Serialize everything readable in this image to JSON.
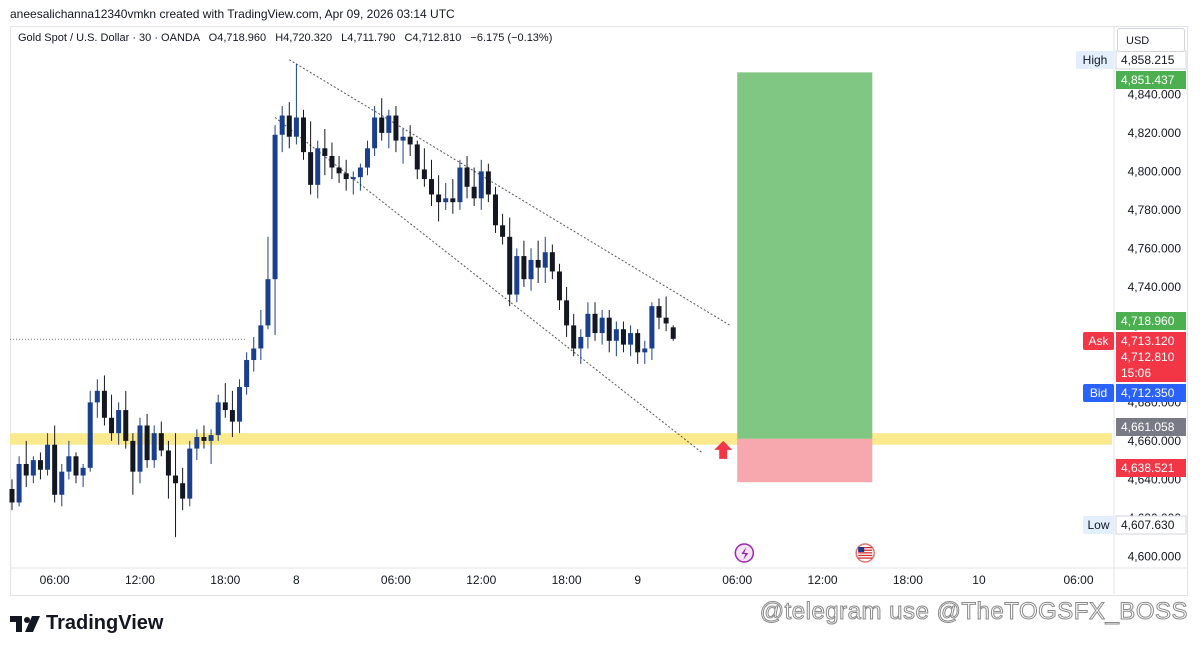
{
  "created_line": "aneesalichanna12340vmkn created with TradingView.com, Apr 09, 2026 03:14 UTC",
  "legend": {
    "symbol": "Gold Spot / U.S. Dollar · 30 · OANDA",
    "open": "O4,718.960",
    "high": "H4,720.320",
    "low": "L4,711.790",
    "close": "C4,712.810",
    "change": "−6.175 (−0.13%)"
  },
  "currency": "USD",
  "brand": "TradingView",
  "watermark": "@telegram use @TheTOGSFX_BOSS",
  "colors": {
    "up_candle": "#1b3f8f",
    "down_candle": "#131722",
    "target_zone": "#81c784",
    "stop_zone": "#f7a7ae",
    "support_band": "#fbe98e",
    "high_tag": "#ffffff",
    "target_tag": "#4caf50",
    "ask": "#f23645",
    "bid": "#2962ff",
    "arrow": "#f23645"
  },
  "icons": [
    "lightning-icon",
    "us-flag-icon",
    "up-arrow-icon",
    "tradingview-logo-icon"
  ],
  "chart_data": {
    "type": "candlestick",
    "title": "",
    "xlabel": "",
    "ylabel": "",
    "ylim": [
      4595,
      4875
    ],
    "y_ticks": [
      4600,
      4620,
      4640,
      4660,
      4680,
      4700,
      4720,
      4740,
      4760,
      4780,
      4800,
      4820,
      4840
    ],
    "y_tick_labels": [
      "4,600.000",
      "4,620.000",
      "4,640.000",
      "4,660.000",
      "4,680.000",
      "4,700.000",
      "4,720.000",
      "4,740.000",
      "4,760.000",
      "4,780.000",
      "4,800.000",
      "4,820.000",
      "4,840.000"
    ],
    "x_ticks": [
      {
        "label": "06:00",
        "bar": 6
      },
      {
        "label": "12:00",
        "bar": 18
      },
      {
        "label": "18:00",
        "bar": 30
      },
      {
        "label": "8",
        "bar": 40
      },
      {
        "label": "06:00",
        "bar": 54
      },
      {
        "label": "12:00",
        "bar": 66
      },
      {
        "label": "18:00",
        "bar": 78
      },
      {
        "label": "9",
        "bar": 88
      },
      {
        "label": "06:00",
        "bar": 102
      },
      {
        "label": "12:00",
        "bar": 114
      },
      {
        "label": "18:00",
        "bar": 126
      },
      {
        "label": "10",
        "bar": 136
      },
      {
        "label": "06:00",
        "bar": 150
      }
    ],
    "candles": [
      [
        4635,
        4640,
        4624,
        4628
      ],
      [
        4628,
        4652,
        4626,
        4648
      ],
      [
        4648,
        4660,
        4636,
        4642
      ],
      [
        4642,
        4652,
        4638,
        4650
      ],
      [
        4650,
        4654,
        4640,
        4645
      ],
      [
        4645,
        4664,
        4642,
        4658
      ],
      [
        4658,
        4668,
        4628,
        4632
      ],
      [
        4632,
        4648,
        4626,
        4644
      ],
      [
        4644,
        4660,
        4640,
        4652
      ],
      [
        4652,
        4654,
        4638,
        4642
      ],
      [
        4642,
        4648,
        4636,
        4646
      ],
      [
        4646,
        4686,
        4644,
        4680
      ],
      [
        4680,
        4692,
        4672,
        4686
      ],
      [
        4686,
        4694,
        4668,
        4672
      ],
      [
        4672,
        4684,
        4660,
        4664
      ],
      [
        4664,
        4680,
        4658,
        4676
      ],
      [
        4676,
        4686,
        4656,
        4660
      ],
      [
        4660,
        4664,
        4632,
        4644
      ],
      [
        4644,
        4672,
        4638,
        4668
      ],
      [
        4668,
        4674,
        4646,
        4650
      ],
      [
        4650,
        4668,
        4646,
        4664
      ],
      [
        4664,
        4670,
        4652,
        4655
      ],
      [
        4655,
        4660,
        4630,
        4642
      ],
      [
        4642,
        4664,
        4610,
        4638
      ],
      [
        4638,
        4646,
        4624,
        4630
      ],
      [
        4630,
        4660,
        4626,
        4656
      ],
      [
        4656,
        4666,
        4650,
        4662
      ],
      [
        4662,
        4668,
        4656,
        4660
      ],
      [
        4660,
        4666,
        4648,
        4663
      ],
      [
        4663,
        4684,
        4660,
        4680
      ],
      [
        4680,
        4690,
        4672,
        4676
      ],
      [
        4676,
        4686,
        4662,
        4670
      ],
      [
        4670,
        4692,
        4664,
        4688
      ],
      [
        4688,
        4706,
        4684,
        4702
      ],
      [
        4702,
        4714,
        4696,
        4708
      ],
      [
        4708,
        4728,
        4702,
        4720
      ],
      [
        4720,
        4766,
        4718,
        4744
      ],
      [
        4744,
        4824,
        4715,
        4819
      ],
      [
        4819,
        4834,
        4810,
        4829
      ],
      [
        4829,
        4836,
        4812,
        4818
      ],
      [
        4818,
        4856,
        4814,
        4828
      ],
      [
        4828,
        4832,
        4806,
        4810
      ],
      [
        4810,
        4826,
        4788,
        4793
      ],
      [
        4793,
        4816,
        4786,
        4812
      ],
      [
        4812,
        4822,
        4798,
        4808
      ],
      [
        4808,
        4815,
        4796,
        4802
      ],
      [
        4802,
        4808,
        4794,
        4799
      ],
      [
        4799,
        4806,
        4790,
        4796
      ],
      [
        4796,
        4800,
        4788,
        4797
      ],
      [
        4797,
        4804,
        4790,
        4802
      ],
      [
        4802,
        4816,
        4798,
        4812
      ],
      [
        4812,
        4834,
        4808,
        4828
      ],
      [
        4828,
        4838,
        4816,
        4820
      ],
      [
        4820,
        4832,
        4812,
        4829
      ],
      [
        4829,
        4834,
        4810,
        4816
      ],
      [
        4816,
        4822,
        4804,
        4818
      ],
      [
        4818,
        4824,
        4808,
        4814
      ],
      [
        4814,
        4816,
        4796,
        4801
      ],
      [
        4801,
        4812,
        4792,
        4796
      ],
      [
        4796,
        4806,
        4782,
        4788
      ],
      [
        4788,
        4798,
        4774,
        4784
      ],
      [
        4784,
        4794,
        4780,
        4786
      ],
      [
        4786,
        4796,
        4778,
        4784
      ],
      [
        4784,
        4806,
        4780,
        4802
      ],
      [
        4802,
        4808,
        4786,
        4792
      ],
      [
        4792,
        4802,
        4782,
        4786
      ],
      [
        4786,
        4806,
        4780,
        4800
      ],
      [
        4800,
        4804,
        4784,
        4788
      ],
      [
        4788,
        4792,
        4768,
        4772
      ],
      [
        4772,
        4778,
        4762,
        4766
      ],
      [
        4766,
        4776,
        4730,
        4736
      ],
      [
        4736,
        4760,
        4732,
        4756
      ],
      [
        4756,
        4764,
        4740,
        4744
      ],
      [
        4744,
        4760,
        4738,
        4754
      ],
      [
        4754,
        4764,
        4742,
        4750
      ],
      [
        4750,
        4766,
        4742,
        4758
      ],
      [
        4758,
        4762,
        4744,
        4748
      ],
      [
        4748,
        4752,
        4728,
        4733
      ],
      [
        4733,
        4740,
        4714,
        4720
      ],
      [
        4720,
        4726,
        4704,
        4708
      ],
      [
        4708,
        4718,
        4700,
        4714
      ],
      [
        4714,
        4732,
        4708,
        4726
      ],
      [
        4726,
        4732,
        4712,
        4716
      ],
      [
        4716,
        4728,
        4710,
        4724
      ],
      [
        4724,
        4728,
        4706,
        4712
      ],
      [
        4712,
        4722,
        4704,
        4718
      ],
      [
        4718,
        4722,
        4706,
        4710
      ],
      [
        4710,
        4720,
        4704,
        4716
      ],
      [
        4716,
        4718,
        4700,
        4706
      ],
      [
        4706,
        4712,
        4700,
        4708
      ],
      [
        4708,
        4732,
        4702,
        4730
      ],
      [
        4730,
        4734,
        4718,
        4724
      ],
      [
        4724,
        4735,
        4717,
        4721
      ],
      [
        4719,
        4720,
        4712,
        4713
      ]
    ],
    "price_lines": [
      {
        "label": "",
        "value": 4712.81,
        "style": "dotted"
      }
    ],
    "support_zone": {
      "from": 4658,
      "to": 4664
    },
    "trendlines": [
      {
        "from_bar": 39,
        "from_value": 4858,
        "to_bar": 101,
        "to_value": 4720
      },
      {
        "from_bar": 37,
        "from_value": 4828,
        "to_bar": 97,
        "to_value": 4654
      }
    ],
    "position": {
      "type": "long",
      "entry": 4661.058,
      "target": 4851.437,
      "stop": 4638.521,
      "start_bar": 102,
      "end_bar": 121
    },
    "price_tags": [
      {
        "side_label": "High",
        "value": "4,858.215",
        "price": 4858.215,
        "kind": "high"
      },
      {
        "side_label": "",
        "value": "4,851.437",
        "price": 4851.437,
        "kind": "target"
      },
      {
        "side_label": "",
        "value": "4,718.960",
        "price": 4718.96,
        "kind": "target"
      },
      {
        "side_label": "Ask",
        "value": "4,713.120",
        "price": 4713.12,
        "kind": "ask"
      },
      {
        "side_label": "",
        "value": "4,712.810",
        "price": 4712.81,
        "kind": "last",
        "extra": "15:06"
      },
      {
        "side_label": "Bid",
        "value": "4,712.350",
        "price": 4712.35,
        "kind": "bid"
      },
      {
        "side_label": "",
        "value": "4,661.058",
        "price": 4661.058,
        "kind": "entry"
      },
      {
        "side_label": "",
        "value": "4,638.521",
        "price": 4638.521,
        "kind": "stop"
      },
      {
        "side_label": "Low",
        "value": "4,607.630",
        "price": 4607.63,
        "kind": "low"
      }
    ],
    "events": [
      {
        "icon": "lightning-icon",
        "bar": 103
      },
      {
        "icon": "us-flag-icon",
        "bar": 120
      }
    ]
  }
}
